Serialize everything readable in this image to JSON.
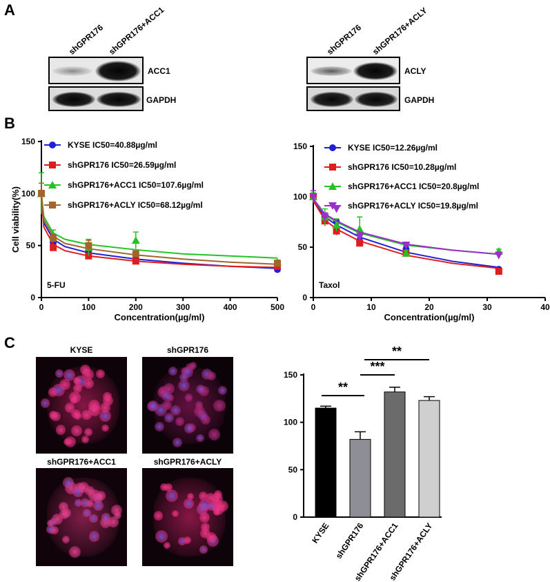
{
  "panels": {
    "a": "A",
    "b": "B",
    "c": "C"
  },
  "blot_left": {
    "lanes": [
      "shGPR176",
      "shGPR176+ACC1"
    ],
    "rows": [
      "ACC1",
      "GAPDH"
    ]
  },
  "blot_right": {
    "lanes": [
      "shGPR176",
      "shGPR176+ACLY"
    ],
    "rows": [
      "ACLY",
      "GAPDH"
    ]
  },
  "chart_data": [
    {
      "type": "line",
      "ylabel": "Cell viability(%)",
      "xlabel": "Concentration(µg/ml)",
      "annotation": "5-FU",
      "xlim": [
        0,
        500
      ],
      "ylim": [
        0,
        150
      ],
      "xticks": [
        0,
        100,
        200,
        300,
        400,
        500
      ],
      "yticks": [
        0,
        50,
        100,
        150
      ],
      "legend_position": "top-left",
      "series": [
        {
          "name": "KYSE IC50=40.88µg/ml",
          "color": "#1f1fd6",
          "marker": "circle",
          "x": [
            0,
            25,
            100,
            200,
            500
          ],
          "y": [
            100,
            53,
            45,
            37,
            27
          ],
          "err": [
            3,
            3,
            3,
            2,
            1
          ],
          "fit": [
            [
              0,
              100
            ],
            [
              5,
              72
            ],
            [
              25,
              56
            ],
            [
              50,
              49
            ],
            [
              100,
              43
            ],
            [
              200,
              37
            ],
            [
              300,
              33
            ],
            [
              400,
              30
            ],
            [
              500,
              28
            ]
          ]
        },
        {
          "name": "shGPR176 IC50=26.59µg/ml",
          "color": "#e01c1c",
          "marker": "square",
          "x": [
            0,
            25,
            100,
            200,
            500
          ],
          "y": [
            100,
            48,
            40,
            35,
            30
          ],
          "err": [
            3,
            2,
            2,
            2,
            1
          ],
          "fit": [
            [
              0,
              100
            ],
            [
              5,
              68
            ],
            [
              25,
              51
            ],
            [
              50,
              45
            ],
            [
              100,
              40
            ],
            [
              200,
              35
            ],
            [
              300,
              32
            ],
            [
              400,
              30
            ],
            [
              500,
              29
            ]
          ]
        },
        {
          "name": "shGPR176+ACC1 IC50=107.6µg/ml",
          "color": "#22c422",
          "marker": "triangle",
          "x": [
            0,
            25,
            100,
            200,
            500
          ],
          "y": [
            100,
            60,
            48,
            55,
            34
          ],
          "err": [
            20,
            5,
            8,
            8,
            2
          ],
          "fit": [
            [
              0,
              100
            ],
            [
              5,
              78
            ],
            [
              25,
              62
            ],
            [
              50,
              56
            ],
            [
              100,
              51
            ],
            [
              200,
              46
            ],
            [
              300,
              42
            ],
            [
              400,
              40
            ],
            [
              500,
              38
            ]
          ]
        },
        {
          "name": "shGPR176+ACLY  IC50=68.12µg/ml",
          "color": "#a0662a",
          "marker": "square",
          "x": [
            0,
            25,
            100,
            200,
            500
          ],
          "y": [
            100,
            57,
            50,
            42,
            33
          ],
          "err": [
            10,
            4,
            5,
            3,
            2
          ],
          "fit": [
            [
              0,
              100
            ],
            [
              5,
              75
            ],
            [
              25,
              59
            ],
            [
              50,
              52
            ],
            [
              100,
              47
            ],
            [
              200,
              41
            ],
            [
              300,
              37
            ],
            [
              400,
              34
            ],
            [
              500,
              32
            ]
          ]
        }
      ]
    },
    {
      "type": "line",
      "xlabel": "Concentration(µg/ml)",
      "annotation": "Taxol",
      "xlim": [
        0,
        40
      ],
      "ylim": [
        0,
        150
      ],
      "xticks": [
        0,
        10,
        20,
        30,
        40
      ],
      "yticks": [
        0,
        50,
        100,
        150
      ],
      "legend_position": "top-left",
      "series": [
        {
          "name": "KYSE IC50=12.26µg/ml",
          "color": "#1f1fd6",
          "marker": "circle",
          "x": [
            0,
            2,
            4,
            8,
            16,
            32
          ],
          "y": [
            100,
            80,
            75,
            56,
            48,
            28
          ],
          "err": [
            3,
            4,
            3,
            3,
            3,
            1
          ],
          "fit": [
            [
              0,
              97
            ],
            [
              2,
              80
            ],
            [
              4,
              72
            ],
            [
              8,
              60
            ],
            [
              16,
              45
            ],
            [
              24,
              36
            ],
            [
              32,
              30
            ]
          ]
        },
        {
          "name": "shGPR176 IC50=10.28µg/ml",
          "color": "#e01c1c",
          "marker": "square",
          "x": [
            0,
            2,
            4,
            8,
            16,
            32
          ],
          "y": [
            100,
            76,
            66,
            54,
            44,
            26
          ],
          "err": [
            3,
            5,
            4,
            3,
            2,
            1
          ],
          "fit": [
            [
              0,
              96
            ],
            [
              2,
              77
            ],
            [
              4,
              68
            ],
            [
              8,
              56
            ],
            [
              16,
              42
            ],
            [
              24,
              34
            ],
            [
              32,
              29
            ]
          ]
        },
        {
          "name": "shGPR176+ACC1 IC50=20.8µg/ml",
          "color": "#22c422",
          "marker": "triangle",
          "x": [
            0,
            2,
            4,
            8,
            16,
            32
          ],
          "y": [
            100,
            80,
            72,
            68,
            44,
            46
          ],
          "err": [
            4,
            8,
            6,
            12,
            3,
            2
          ],
          "fit": [
            [
              0,
              98
            ],
            [
              2,
              82
            ],
            [
              4,
              75
            ],
            [
              8,
              64
            ],
            [
              16,
              52
            ],
            [
              24,
              47
            ],
            [
              32,
              43
            ]
          ]
        },
        {
          "name": "shGPR176+ACLY  IC50=19.8µg/ml",
          "color": "#9a2fc9",
          "marker": "triangle-down",
          "x": [
            0,
            2,
            4,
            8,
            16,
            32
          ],
          "y": [
            100,
            80,
            88,
            60,
            52,
            42
          ],
          "err": [
            6,
            4,
            3,
            4,
            3,
            3
          ],
          "fit": [
            [
              0,
              98
            ],
            [
              2,
              83
            ],
            [
              4,
              76
            ],
            [
              8,
              65
            ],
            [
              16,
              53
            ],
            [
              24,
              47
            ],
            [
              32,
              43
            ]
          ]
        }
      ]
    },
    {
      "type": "bar",
      "categories": [
        "KYSE",
        "shGPR176",
        "shGPR176+ACC1",
        "shGPR176+ACLY"
      ],
      "values": [
        115,
        82,
        132,
        123
      ],
      "errors": [
        2,
        8,
        5,
        4
      ],
      "colors": [
        "#000000",
        "#8e8e96",
        "#6b6b6b",
        "#cfcfcf"
      ],
      "ylim": [
        0,
        150
      ],
      "yticks": [
        0,
        50,
        100,
        150
      ],
      "significance": [
        {
          "from": 0,
          "to": 1,
          "label": "**",
          "level": 1
        },
        {
          "from": 1,
          "to": 2,
          "label": "***",
          "level": 2
        },
        {
          "from": 1,
          "to": 3,
          "label": "**",
          "level": 3
        }
      ]
    }
  ],
  "micrographs": [
    "KYSE",
    "shGPR176",
    "shGPR176+ACC1",
    "shGPR176+ACLY"
  ]
}
